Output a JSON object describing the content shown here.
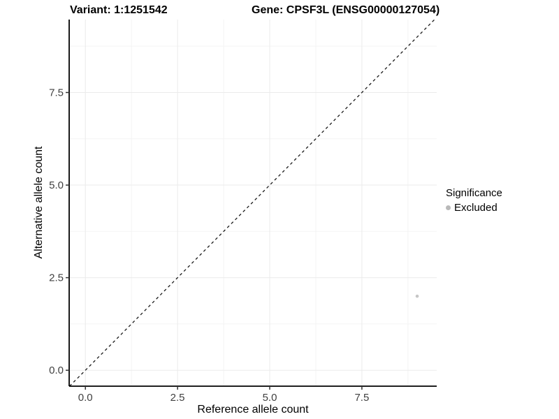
{
  "chart_data": {
    "type": "scatter",
    "title_left": "Variant: 1:1251542",
    "title_right": "Gene: CPSF3L (ENSG00000127054)",
    "xlabel": "Reference allele count",
    "ylabel": "Alternative allele count",
    "xlim": [
      -0.44,
      9.53
    ],
    "ylim": [
      -0.43,
      9.47
    ],
    "x_ticks": [
      0.0,
      2.5,
      5.0,
      7.5
    ],
    "x_tick_labels": [
      "0.0",
      "2.5",
      "5.0",
      "7.5"
    ],
    "y_ticks": [
      0.0,
      2.5,
      5.0,
      7.5
    ],
    "y_tick_labels": [
      "0.0",
      "2.5",
      "5.0",
      "7.5"
    ],
    "x_minor_ticks": [
      1.25,
      3.75,
      6.25,
      8.75
    ],
    "y_minor_ticks": [
      1.25,
      3.75,
      6.25,
      8.75
    ],
    "grid": true,
    "series": [
      {
        "name": "Excluded",
        "color": "#c6c6c6",
        "points": [
          {
            "x": 9,
            "y": 2
          }
        ]
      }
    ],
    "reference_line": {
      "type": "abline",
      "slope": 1,
      "intercept": 0,
      "style": "dashed",
      "color": "#1a1a1a"
    },
    "legend": {
      "title": "Significance",
      "position": "right",
      "entries": [
        {
          "label": "Excluded",
          "color": "#b9b9b9"
        }
      ]
    }
  },
  "colors": {
    "grid_major": "#ebebeb",
    "grid_minor": "#f4f4f4",
    "axis_line": "#000000",
    "tick_mark": "#333333",
    "tick_label": "#404040",
    "panel_background": "#ffffff"
  }
}
